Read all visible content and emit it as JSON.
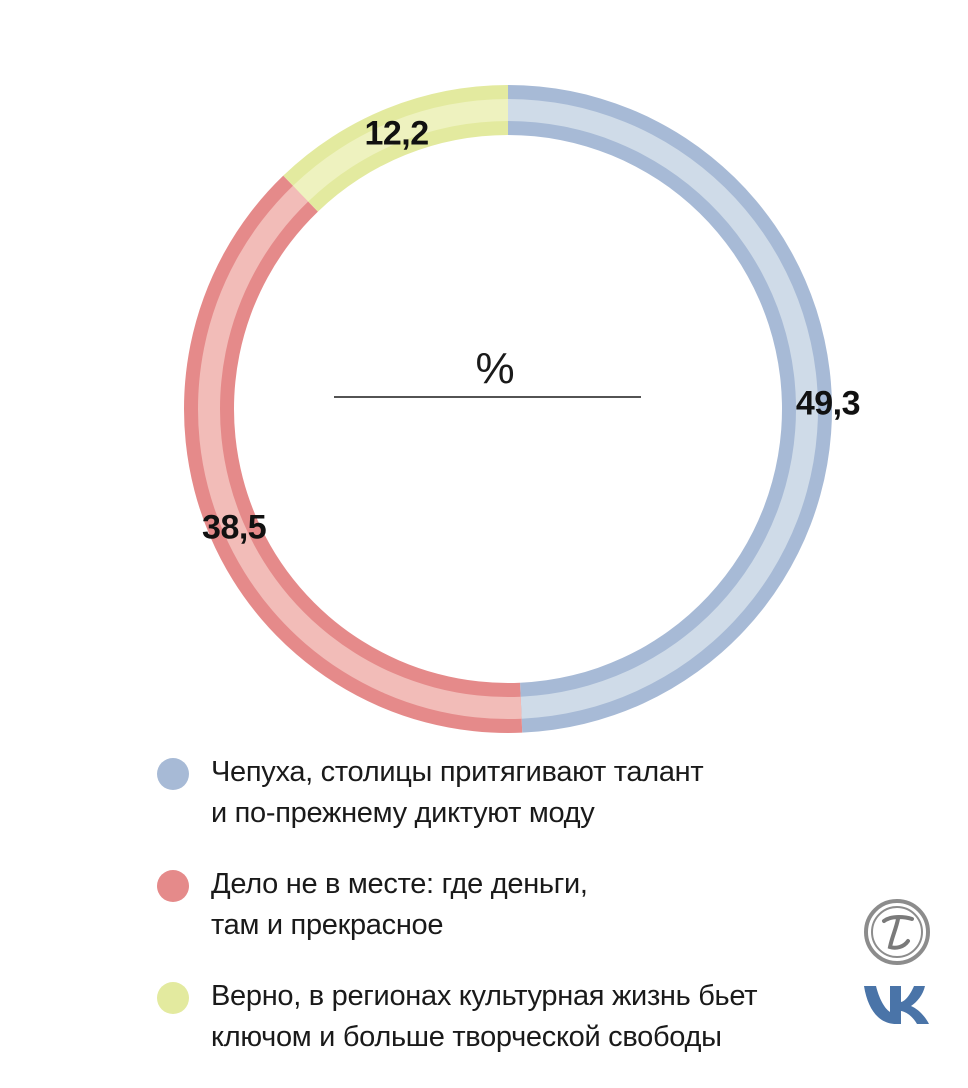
{
  "chart_data": {
    "type": "pie",
    "style": "donut",
    "unit_label": "%",
    "slices": [
      {
        "label": "Чепуха, столицы притягивают талант и по-прежнему диктуют моду",
        "value": 49.3,
        "value_text": "49,3",
        "color": "#cfdbe8",
        "rim_color": "#a7bad6"
      },
      {
        "label": "Дело не в месте: где деньги, там и прекрасное",
        "value": 38.5,
        "value_text": "38,5",
        "color": "#f2bcb8",
        "rim_color": "#e58a8a"
      },
      {
        "label": "Верно, в регионах культурная жизнь бьет ключом и больше творческой свободы",
        "value": 12.2,
        "value_text": "12,2",
        "color": "#eef2bf",
        "rim_color": "#e3ea9f"
      }
    ]
  },
  "legend": {
    "items": [
      {
        "line1": "Чепуха, столицы притягивают талант",
        "line2": "и по-прежнему диктуют моду",
        "color": "#a7bad6"
      },
      {
        "line1": "Дело не в месте: где деньги,",
        "line2": "там и прекрасное",
        "color": "#e58a8a"
      },
      {
        "line1": "Верно, в регионах культурная жизнь бьет",
        "line2": "ключом и больше творческой свободы",
        "color": "#e3ea9f"
      }
    ]
  },
  "logos": {
    "emblem_icon": "newspaper-emblem-icon",
    "vk_icon": "vk-logo-icon"
  }
}
